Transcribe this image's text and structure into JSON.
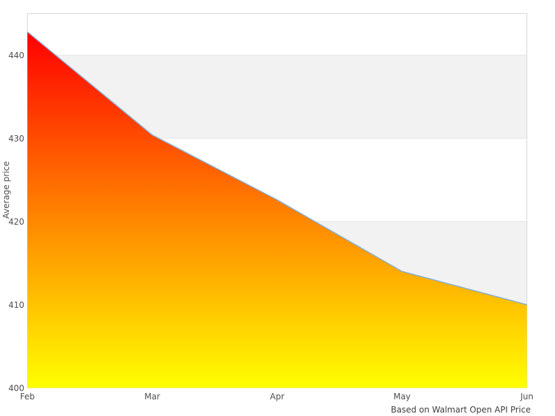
{
  "chart_data": {
    "type": "area",
    "title": "",
    "xlabel": "",
    "ylabel": "Average price",
    "caption": "Based on Walmart Open API Price",
    "x": [
      "Feb",
      "Mar",
      "Apr",
      "May",
      "Jun"
    ],
    "series": [
      {
        "name": "Average price",
        "values": [
          442.8,
          430.4,
          422.6,
          414.0,
          410.0
        ]
      }
    ],
    "ylim": [
      400,
      445
    ],
    "yticks": [
      400,
      410,
      420,
      430,
      440
    ],
    "legend": false,
    "grid": "horizontal-alternating-bands",
    "bands": [
      [
        410,
        420
      ],
      [
        430,
        440
      ]
    ],
    "colors": {
      "gradient_top": "#ff0000",
      "gradient_bottom": "#ffff00",
      "line": "#85aed6",
      "band": "#f2f2f2",
      "gridline": "#e5e5e5",
      "border": "#d8d8d8",
      "tick_text": "#4d4d4d",
      "caption_text": "#3d3d3d",
      "background": "#ffffff"
    }
  }
}
